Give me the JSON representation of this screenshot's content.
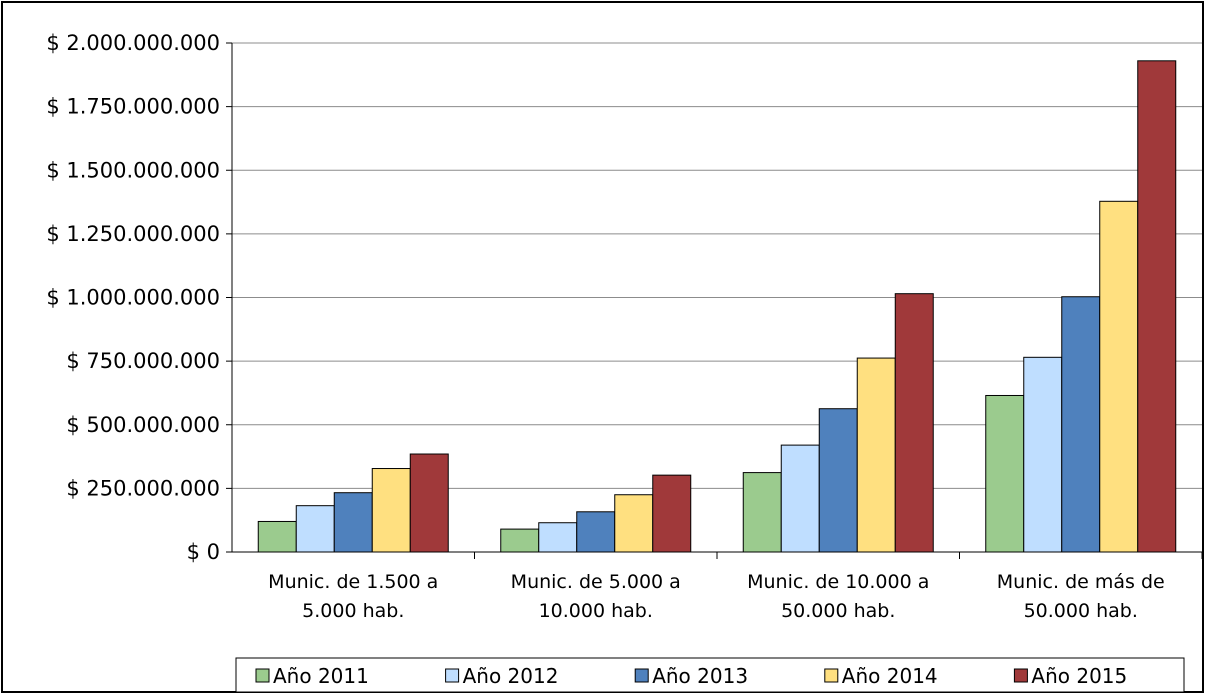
{
  "chart_data": {
    "type": "bar",
    "categories": [
      [
        "Munic. de 1.500 a",
        "5.000 hab."
      ],
      [
        "Munic. de 5.000 a",
        "10.000 hab."
      ],
      [
        "Munic. de 10.000 a",
        "50.000 hab."
      ],
      [
        "Munic. de más de",
        "50.000 hab."
      ]
    ],
    "series": [
      {
        "name": "Año 2011",
        "color": "#9BCB8E",
        "values": [
          120000000,
          90000000,
          312000000,
          615000000
        ]
      },
      {
        "name": "Año 2012",
        "color": "#BFDEFF",
        "values": [
          182000000,
          115000000,
          420000000,
          765000000
        ]
      },
      {
        "name": "Año 2013",
        "color": "#4F81BD",
        "values": [
          233000000,
          158000000,
          563000000,
          1003000000
        ]
      },
      {
        "name": "Año 2014",
        "color": "#FFE080",
        "values": [
          328000000,
          225000000,
          762000000,
          1378000000
        ]
      },
      {
        "name": "Año 2015",
        "color": "#A0393A",
        "values": [
          385000000,
          302000000,
          1015000000,
          1930000000
        ]
      }
    ],
    "ylim": [
      0,
      2000000000
    ],
    "yticks": [
      0,
      250000000,
      500000000,
      750000000,
      1000000000,
      1250000000,
      1500000000,
      1750000000,
      2000000000
    ],
    "ytick_labels": [
      "$ 0",
      "$ 250.000.000",
      "$ 500.000.000",
      "$ 750.000.000",
      "$ 1.000.000.000",
      "$ 1.250.000.000",
      "$ 1.500.000.000",
      "$ 1.750.000.000",
      "$ 2.000.000.000"
    ],
    "grid": true,
    "legend_position": "bottom",
    "title": "",
    "xlabel": "",
    "ylabel": ""
  }
}
